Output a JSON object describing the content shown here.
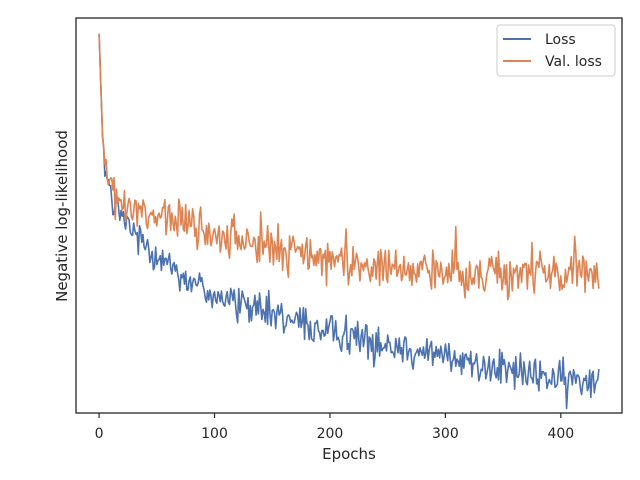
{
  "chart_data": {
    "type": "line",
    "title": "",
    "xlabel": "Epochs",
    "ylabel": "Negative log-likelihood",
    "xlim": [
      -20,
      453
    ],
    "ylim": [
      0,
      100
    ],
    "x_ticks": [
      0,
      100,
      200,
      300,
      400
    ],
    "y_ticks_shown": false,
    "grid": false,
    "legend": "top-right",
    "n_epochs": 433,
    "colors": {
      "Loss": "#4c72b0",
      "Val. loss": "#dd8452"
    },
    "series": [
      {
        "name": "Loss",
        "anchors": [
          [
            0,
            96
          ],
          [
            3,
            70
          ],
          [
            6,
            61
          ],
          [
            10,
            55
          ],
          [
            15,
            52
          ],
          [
            25,
            47
          ],
          [
            40,
            43
          ],
          [
            60,
            38
          ],
          [
            80,
            33
          ],
          [
            100,
            30
          ],
          [
            130,
            27
          ],
          [
            160,
            24
          ],
          [
            200,
            21
          ],
          [
            240,
            18.5
          ],
          [
            280,
            15.5
          ],
          [
            320,
            13
          ],
          [
            360,
            10.5
          ],
          [
            400,
            8.5
          ],
          [
            430,
            8
          ],
          [
            433,
            13
          ]
        ],
        "noise": 2.2
      },
      {
        "name": "Val. loss",
        "anchors": [
          [
            0,
            96
          ],
          [
            3,
            70
          ],
          [
            6,
            62
          ],
          [
            10,
            57
          ],
          [
            20,
            52
          ],
          [
            40,
            50
          ],
          [
            60,
            48.5
          ],
          [
            80,
            46.5
          ],
          [
            100,
            45
          ],
          [
            140,
            42
          ],
          [
            180,
            40
          ],
          [
            220,
            37.5
          ],
          [
            260,
            36
          ],
          [
            300,
            35.5
          ],
          [
            340,
            35
          ],
          [
            380,
            35.5
          ],
          [
            420,
            35
          ],
          [
            433,
            36
          ]
        ],
        "noise": 2.6
      }
    ]
  }
}
